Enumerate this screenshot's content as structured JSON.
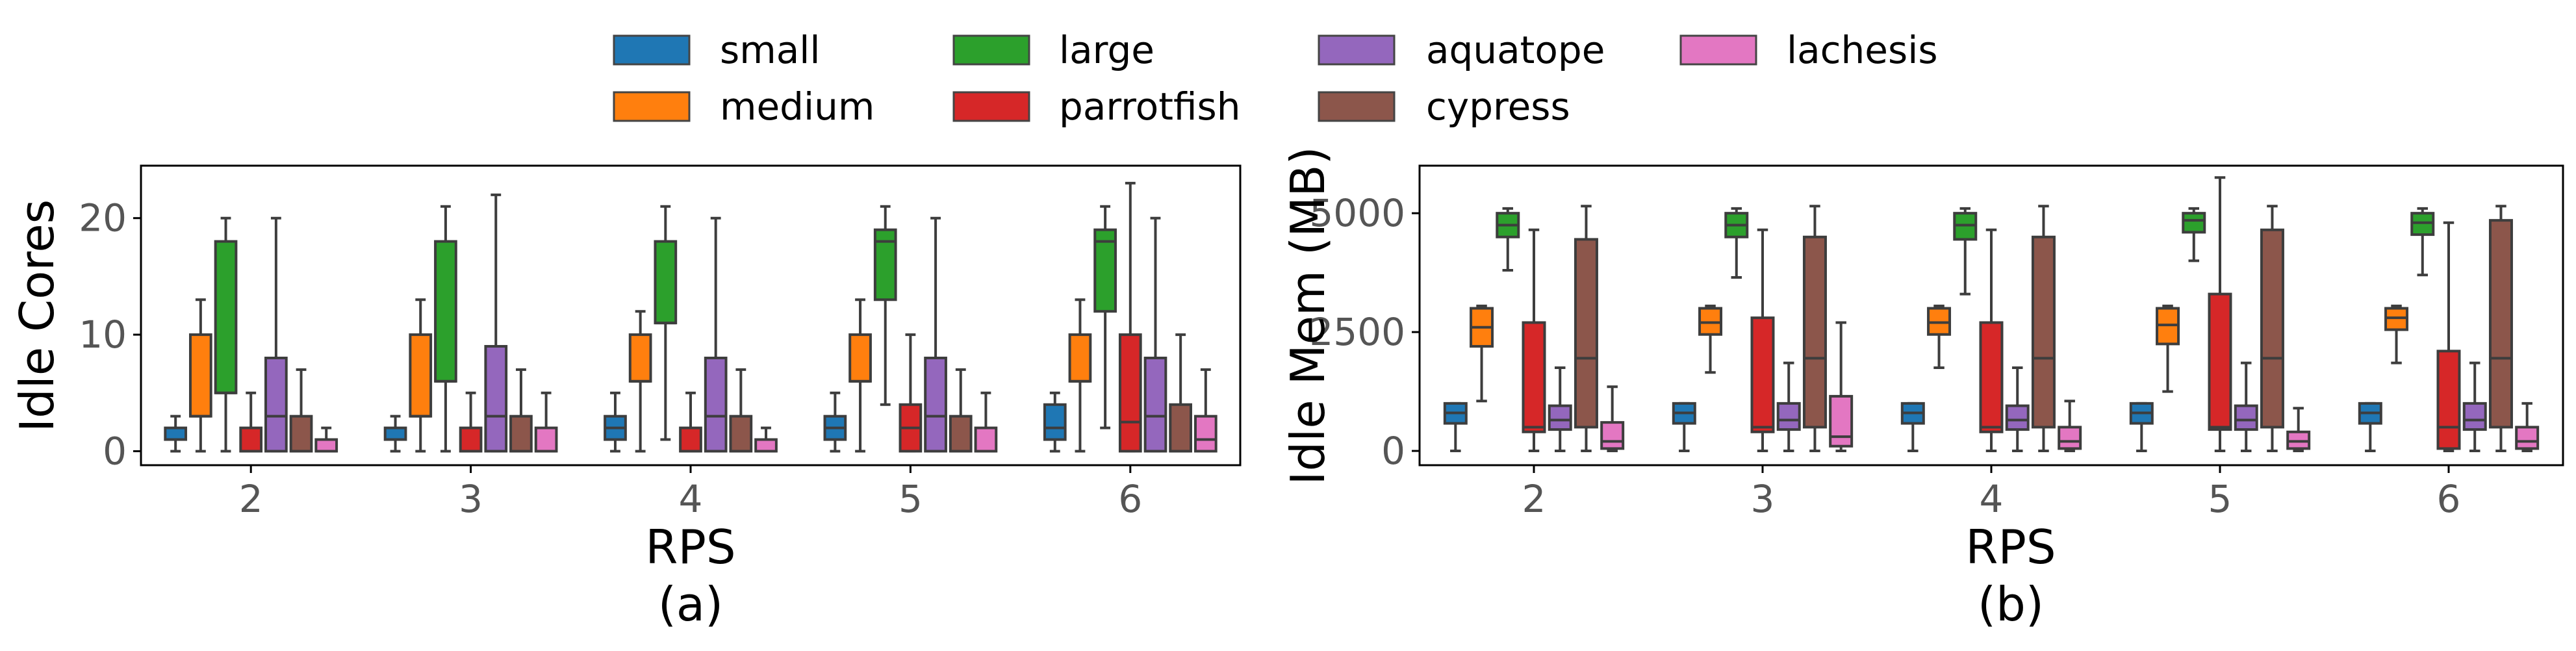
{
  "legend": {
    "entries": [
      {
        "name": "small",
        "color": "#1f77b4"
      },
      {
        "name": "medium",
        "color": "#ff7f0e"
      },
      {
        "name": "large",
        "color": "#2ca02c"
      },
      {
        "name": "parrotfish",
        "color": "#d62728"
      },
      {
        "name": "aquatope",
        "color": "#9467bd"
      },
      {
        "name": "cypress",
        "color": "#8c564b"
      },
      {
        "name": "lachesis",
        "color": "#e377c2"
      }
    ]
  },
  "chart_data": [
    {
      "type": "box",
      "panel": "(a)",
      "xlabel": "RPS",
      "ylabel": "Idle Cores",
      "ylim": [
        -1.2,
        24.5
      ],
      "yticks": [
        0,
        10,
        20
      ],
      "categories": [
        "2",
        "3",
        "4",
        "5",
        "6"
      ],
      "series": [
        {
          "name": "small",
          "boxes": [
            {
              "wl": 0,
              "q1": 1,
              "med": 1,
              "q3": 2,
              "wh": 3
            },
            {
              "wl": 0,
              "q1": 1,
              "med": 1,
              "q3": 2,
              "wh": 3
            },
            {
              "wl": 0,
              "q1": 1,
              "med": 2,
              "q3": 3,
              "wh": 5
            },
            {
              "wl": 0,
              "q1": 1,
              "med": 2,
              "q3": 3,
              "wh": 5
            },
            {
              "wl": 0,
              "q1": 1,
              "med": 2,
              "q3": 4,
              "wh": 5
            }
          ]
        },
        {
          "name": "medium",
          "boxes": [
            {
              "wl": 0,
              "q1": 3,
              "med": 3,
              "q3": 10,
              "wh": 13
            },
            {
              "wl": 0,
              "q1": 3,
              "med": 3,
              "q3": 10,
              "wh": 13
            },
            {
              "wl": 0,
              "q1": 6,
              "med": 6,
              "q3": 10,
              "wh": 12
            },
            {
              "wl": 0,
              "q1": 6,
              "med": 6,
              "q3": 10,
              "wh": 13
            },
            {
              "wl": 0,
              "q1": 6,
              "med": 6,
              "q3": 10,
              "wh": 13
            }
          ]
        },
        {
          "name": "large",
          "boxes": [
            {
              "wl": 0,
              "q1": 5,
              "med": 5,
              "q3": 18,
              "wh": 20
            },
            {
              "wl": 0,
              "q1": 6,
              "med": 6,
              "q3": 18,
              "wh": 21
            },
            {
              "wl": 1,
              "q1": 11,
              "med": 11,
              "q3": 18,
              "wh": 21
            },
            {
              "wl": 4,
              "q1": 13,
              "med": 18,
              "q3": 19,
              "wh": 21
            },
            {
              "wl": 2,
              "q1": 12,
              "med": 18,
              "q3": 19,
              "wh": 21
            }
          ]
        },
        {
          "name": "parrotfish",
          "boxes": [
            {
              "wl": 0,
              "q1": 0,
              "med": 0,
              "q3": 2,
              "wh": 5
            },
            {
              "wl": 0,
              "q1": 0,
              "med": 0,
              "q3": 2,
              "wh": 5
            },
            {
              "wl": 0,
              "q1": 0,
              "med": 0,
              "q3": 2,
              "wh": 5
            },
            {
              "wl": 0,
              "q1": 0,
              "med": 2,
              "q3": 4,
              "wh": 10
            },
            {
              "wl": 0,
              "q1": 0,
              "med": 2.5,
              "q3": 10,
              "wh": 23
            }
          ]
        },
        {
          "name": "aquatope",
          "boxes": [
            {
              "wl": 0,
              "q1": 0,
              "med": 3,
              "q3": 8,
              "wh": 20
            },
            {
              "wl": 0,
              "q1": 0,
              "med": 3,
              "q3": 9,
              "wh": 22
            },
            {
              "wl": 0,
              "q1": 0,
              "med": 3,
              "q3": 8,
              "wh": 20
            },
            {
              "wl": 0,
              "q1": 0,
              "med": 3,
              "q3": 8,
              "wh": 20
            },
            {
              "wl": 0,
              "q1": 0,
              "med": 3,
              "q3": 8,
              "wh": 20
            }
          ]
        },
        {
          "name": "cypress",
          "boxes": [
            {
              "wl": 0,
              "q1": 0,
              "med": 0,
              "q3": 3,
              "wh": 7
            },
            {
              "wl": 0,
              "q1": 0,
              "med": 0,
              "q3": 3,
              "wh": 7
            },
            {
              "wl": 0,
              "q1": 0,
              "med": 0,
              "q3": 3,
              "wh": 7
            },
            {
              "wl": 0,
              "q1": 0,
              "med": 0,
              "q3": 3,
              "wh": 7
            },
            {
              "wl": 0,
              "q1": 0,
              "med": 0,
              "q3": 4,
              "wh": 10
            }
          ]
        },
        {
          "name": "lachesis",
          "boxes": [
            {
              "wl": 0,
              "q1": 0,
              "med": 0,
              "q3": 1,
              "wh": 2
            },
            {
              "wl": 0,
              "q1": 0,
              "med": 0,
              "q3": 2,
              "wh": 5
            },
            {
              "wl": 0,
              "q1": 0,
              "med": 0,
              "q3": 1,
              "wh": 2
            },
            {
              "wl": 0,
              "q1": 0,
              "med": 0,
              "q3": 2,
              "wh": 5
            },
            {
              "wl": 0,
              "q1": 0,
              "med": 1,
              "q3": 3,
              "wh": 7
            }
          ]
        }
      ]
    },
    {
      "type": "box",
      "panel": "(b)",
      "xlabel": "RPS",
      "ylabel": "Idle Mem (MB)",
      "ylim": [
        -300,
        6000
      ],
      "yticks": [
        0,
        2500,
        5000
      ],
      "categories": [
        "2",
        "3",
        "4",
        "5",
        "6"
      ],
      "series": [
        {
          "name": "small",
          "boxes": [
            {
              "wl": 0,
              "q1": 580,
              "med": 800,
              "q3": 1000,
              "wh": 1000
            },
            {
              "wl": 0,
              "q1": 580,
              "med": 800,
              "q3": 1000,
              "wh": 1000
            },
            {
              "wl": 0,
              "q1": 580,
              "med": 800,
              "q3": 1000,
              "wh": 1000
            },
            {
              "wl": 0,
              "q1": 580,
              "med": 800,
              "q3": 1000,
              "wh": 1000
            },
            {
              "wl": 0,
              "q1": 580,
              "med": 800,
              "q3": 1000,
              "wh": 1000
            }
          ]
        },
        {
          "name": "medium",
          "boxes": [
            {
              "wl": 1050,
              "q1": 2200,
              "med": 2600,
              "q3": 3000,
              "wh": 3050
            },
            {
              "wl": 1650,
              "q1": 2450,
              "med": 2700,
              "q3": 3000,
              "wh": 3050
            },
            {
              "wl": 1750,
              "q1": 2450,
              "med": 2700,
              "q3": 3000,
              "wh": 3050
            },
            {
              "wl": 1250,
              "q1": 2250,
              "med": 2650,
              "q3": 3000,
              "wh": 3050
            },
            {
              "wl": 1850,
              "q1": 2550,
              "med": 2800,
              "q3": 3000,
              "wh": 3050
            }
          ]
        },
        {
          "name": "large",
          "boxes": [
            {
              "wl": 3800,
              "q1": 4500,
              "med": 4750,
              "q3": 5000,
              "wh": 5100
            },
            {
              "wl": 3650,
              "q1": 4500,
              "med": 4750,
              "q3": 5000,
              "wh": 5100
            },
            {
              "wl": 3300,
              "q1": 4450,
              "med": 4750,
              "q3": 5000,
              "wh": 5100
            },
            {
              "wl": 4000,
              "q1": 4600,
              "med": 4850,
              "q3": 5000,
              "wh": 5100
            },
            {
              "wl": 3700,
              "q1": 4550,
              "med": 4800,
              "q3": 5000,
              "wh": 5100
            }
          ]
        },
        {
          "name": "parrotfish",
          "boxes": [
            {
              "wl": 0,
              "q1": 400,
              "med": 500,
              "q3": 2700,
              "wh": 4650
            },
            {
              "wl": 0,
              "q1": 400,
              "med": 500,
              "q3": 2800,
              "wh": 4650
            },
            {
              "wl": 0,
              "q1": 400,
              "med": 500,
              "q3": 2700,
              "wh": 4650
            },
            {
              "wl": 0,
              "q1": 450,
              "med": 500,
              "q3": 3300,
              "wh": 5750
            },
            {
              "wl": 0,
              "q1": 50,
              "med": 500,
              "q3": 2100,
              "wh": 4800
            }
          ]
        },
        {
          "name": "aquatope",
          "boxes": [
            {
              "wl": 0,
              "q1": 450,
              "med": 650,
              "q3": 950,
              "wh": 1750
            },
            {
              "wl": 0,
              "q1": 450,
              "med": 650,
              "q3": 1000,
              "wh": 1850
            },
            {
              "wl": 0,
              "q1": 450,
              "med": 650,
              "q3": 950,
              "wh": 1750
            },
            {
              "wl": 0,
              "q1": 450,
              "med": 650,
              "q3": 950,
              "wh": 1850
            },
            {
              "wl": 0,
              "q1": 450,
              "med": 650,
              "q3": 1000,
              "wh": 1850
            }
          ]
        },
        {
          "name": "cypress",
          "boxes": [
            {
              "wl": 0,
              "q1": 500,
              "med": 1950,
              "q3": 4450,
              "wh": 5150
            },
            {
              "wl": 0,
              "q1": 500,
              "med": 1950,
              "q3": 4500,
              "wh": 5150
            },
            {
              "wl": 0,
              "q1": 500,
              "med": 1950,
              "q3": 4500,
              "wh": 5150
            },
            {
              "wl": 0,
              "q1": 500,
              "med": 1950,
              "q3": 4650,
              "wh": 5150
            },
            {
              "wl": 0,
              "q1": 500,
              "med": 1950,
              "q3": 4850,
              "wh": 5150
            }
          ]
        },
        {
          "name": "lachesis",
          "boxes": [
            {
              "wl": 0,
              "q1": 50,
              "med": 200,
              "q3": 600,
              "wh": 1350
            },
            {
              "wl": 0,
              "q1": 100,
              "med": 300,
              "q3": 1150,
              "wh": 2700
            },
            {
              "wl": 0,
              "q1": 50,
              "med": 200,
              "q3": 500,
              "wh": 1050
            },
            {
              "wl": 0,
              "q1": 50,
              "med": 200,
              "q3": 400,
              "wh": 900
            },
            {
              "wl": 0,
              "q1": 50,
              "med": 200,
              "q3": 500,
              "wh": 1000
            }
          ]
        }
      ]
    }
  ]
}
